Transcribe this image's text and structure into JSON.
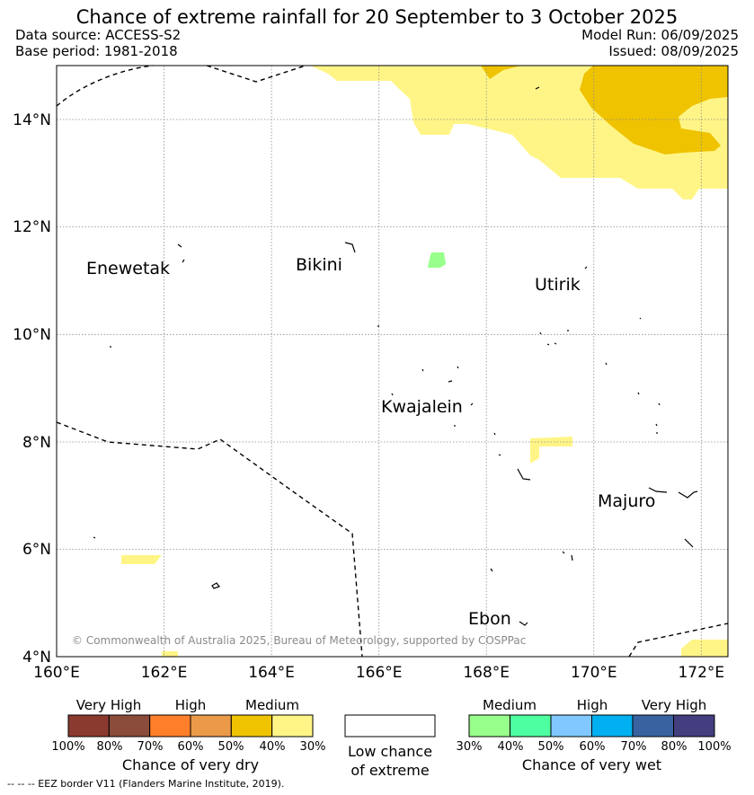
{
  "header": {
    "title": "Chance of extreme rainfall for 20 September to 3 October 2025",
    "data_source": "Data source: ACCESS-S2",
    "base_period": "Base period: 1981-2018",
    "model_run": "Model Run: 06/09/2025",
    "issued": "Issued: 08/09/2025"
  },
  "map": {
    "lon_labels": [
      "160°E",
      "162°E",
      "164°E",
      "166°E",
      "168°E",
      "170°E",
      "172°E"
    ],
    "lat_labels": [
      "4°N",
      "6°N",
      "8°N",
      "10°N",
      "12°N",
      "14°N"
    ],
    "places": [
      "Enewetak",
      "Bikini",
      "Utirik",
      "Kwajalein",
      "Majuro",
      "Ebon"
    ],
    "copyright": "© Commonwealth of Australia 2025, Bureau of Meteorology, supported by COSPPac"
  },
  "legend": {
    "dry": {
      "categories": [
        "Very High",
        "High",
        "Medium"
      ],
      "ticks": [
        "100%",
        "80%",
        "70%",
        "60%",
        "50%",
        "40%",
        "30%"
      ],
      "colors": [
        "#8b3a30",
        "#8b4c3c",
        "#ff7f2a",
        "#eb9a4a",
        "#efc300",
        "#fff587"
      ],
      "title": "Chance of very dry"
    },
    "low": {
      "title_line1": "Low chance",
      "title_line2": "of extreme"
    },
    "wet": {
      "categories": [
        "Medium",
        "High",
        "Very High"
      ],
      "ticks": [
        "30%",
        "40%",
        "50%",
        "60%",
        "70%",
        "80%",
        "100%"
      ],
      "colors": [
        "#98ff8c",
        "#4dffa0",
        "#80c8ff",
        "#00b0f0",
        "#3863a0",
        "#423e80"
      ],
      "title": "Chance of very wet"
    },
    "eez_note": "--  --  -- EEZ border V11 (Flanders Marine Institute, 2019)."
  }
}
